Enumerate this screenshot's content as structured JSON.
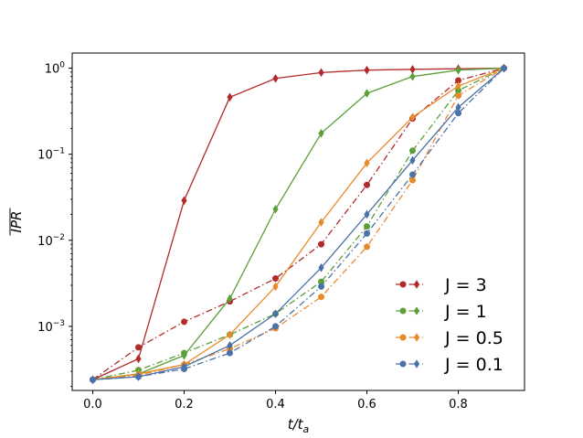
{
  "chart_data": {
    "type": "line",
    "title": "",
    "xlabel": "t/t",
    "xlabel_sub": "a",
    "ylabel": "IPR",
    "ylabel_overline": true,
    "yscale": "log",
    "xlim": [
      -0.045,
      0.945
    ],
    "ylim": [
      0.00018,
      1.5
    ],
    "x_ticks": [
      0.0,
      0.2,
      0.4,
      0.6,
      0.8
    ],
    "x_tick_labels": [
      "0.0",
      "0.2",
      "0.4",
      "0.6",
      "0.8"
    ],
    "y_ticks": [
      0.001,
      0.01,
      0.1,
      1
    ],
    "y_tick_labels": [
      {
        "base": "10",
        "exp": "−3"
      },
      {
        "base": "10",
        "exp": "−2"
      },
      {
        "base": "10",
        "exp": "−1"
      },
      {
        "base": "10",
        "exp": "0"
      }
    ],
    "grid": false,
    "legend_position": "lower right",
    "x": [
      0.0,
      0.1,
      0.2,
      0.3,
      0.4,
      0.5,
      0.6,
      0.7,
      0.8,
      0.9
    ],
    "series": [
      {
        "name": "J = 3",
        "color": "#b22a2a",
        "style": "dashdot",
        "marker": "circle",
        "values": [
          0.00024,
          0.00057,
          0.00113,
          0.00195,
          0.0036,
          0.009,
          0.044,
          0.26,
          0.72,
          1.0
        ]
      },
      {
        "name": "J = 3",
        "color": "#b22a2a",
        "style": "solid",
        "marker": "diamond",
        "values": [
          0.00024,
          0.00042,
          0.029,
          0.46,
          0.76,
          0.89,
          0.95,
          0.97,
          0.985,
          1.0
        ]
      },
      {
        "name": "J = 1",
        "color": "#5ca03a",
        "style": "dashdot",
        "marker": "circle",
        "values": [
          0.00024,
          0.00031,
          0.00049,
          0.0008,
          0.0014,
          0.0033,
          0.0145,
          0.11,
          0.55,
          1.0
        ]
      },
      {
        "name": "J = 1",
        "color": "#5ca03a",
        "style": "solid",
        "marker": "diamond",
        "values": [
          0.00024,
          0.00028,
          0.00046,
          0.0021,
          0.023,
          0.175,
          0.51,
          0.8,
          0.95,
          1.0
        ]
      },
      {
        "name": "J = 0.5",
        "color": "#e8892a",
        "style": "dashdot",
        "marker": "circle",
        "values": [
          0.00024,
          0.00027,
          0.00036,
          0.00055,
          0.00095,
          0.0022,
          0.0084,
          0.05,
          0.48,
          1.0
        ]
      },
      {
        "name": "J = 0.5",
        "color": "#e8892a",
        "style": "solid",
        "marker": "diamond",
        "values": [
          0.00024,
          0.00028,
          0.00036,
          0.0008,
          0.0029,
          0.0162,
          0.079,
          0.27,
          0.62,
          1.0
        ]
      },
      {
        "name": "J = 0.1",
        "color": "#4a72a8",
        "style": "dashdot",
        "marker": "circle",
        "values": [
          0.00024,
          0.00026,
          0.00032,
          0.00049,
          0.001,
          0.0029,
          0.012,
          0.058,
          0.3,
          1.0
        ]
      },
      {
        "name": "J = 0.1",
        "color": "#4a72a8",
        "style": "solid",
        "marker": "diamond",
        "values": [
          0.00024,
          0.00026,
          0.00034,
          0.0006,
          0.0014,
          0.0048,
          0.02,
          0.085,
          0.35,
          1.0
        ]
      }
    ],
    "legend": [
      {
        "label": "J = 3",
        "color": "#b22a2a"
      },
      {
        "label": "J = 1",
        "color": "#5ca03a"
      },
      {
        "label": "J = 0.5",
        "color": "#e8892a"
      },
      {
        "label": "J = 0.1",
        "color": "#4a72a8"
      }
    ]
  }
}
